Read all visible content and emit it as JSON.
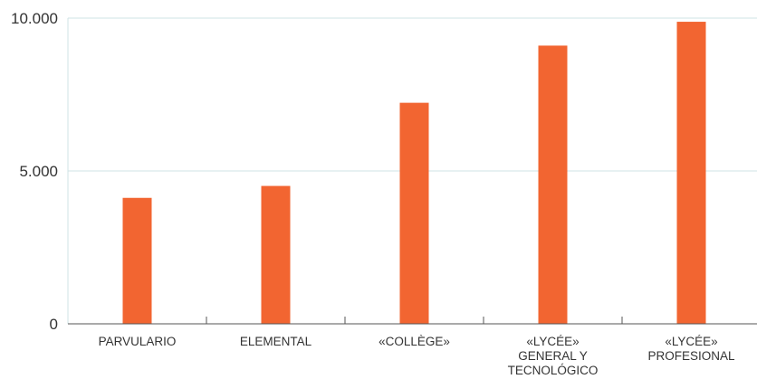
{
  "chart_data": {
    "type": "bar",
    "categories": [
      [
        "PARVULARIO"
      ],
      [
        "ELEMENTAL"
      ],
      [
        "«COLLÈGE»"
      ],
      [
        "«LYCÉE»",
        "GENERAL Y",
        "TECNOLÓGICO"
      ],
      [
        "«LYCÉE»",
        "PROFESIONAL"
      ]
    ],
    "values": [
      4120,
      4510,
      7230,
      9100,
      9880
    ],
    "ylim": [
      0,
      10000
    ],
    "y_ticks": [
      {
        "value": 0,
        "label": "0"
      },
      {
        "value": 5000,
        "label": "5.000"
      },
      {
        "value": 10000,
        "label": "10.000"
      }
    ],
    "grid": true,
    "legend": "none",
    "colors": {
      "bar": "#f26531",
      "grid": "#cfe3e6",
      "axis": "#555555",
      "text": "#333333"
    }
  }
}
